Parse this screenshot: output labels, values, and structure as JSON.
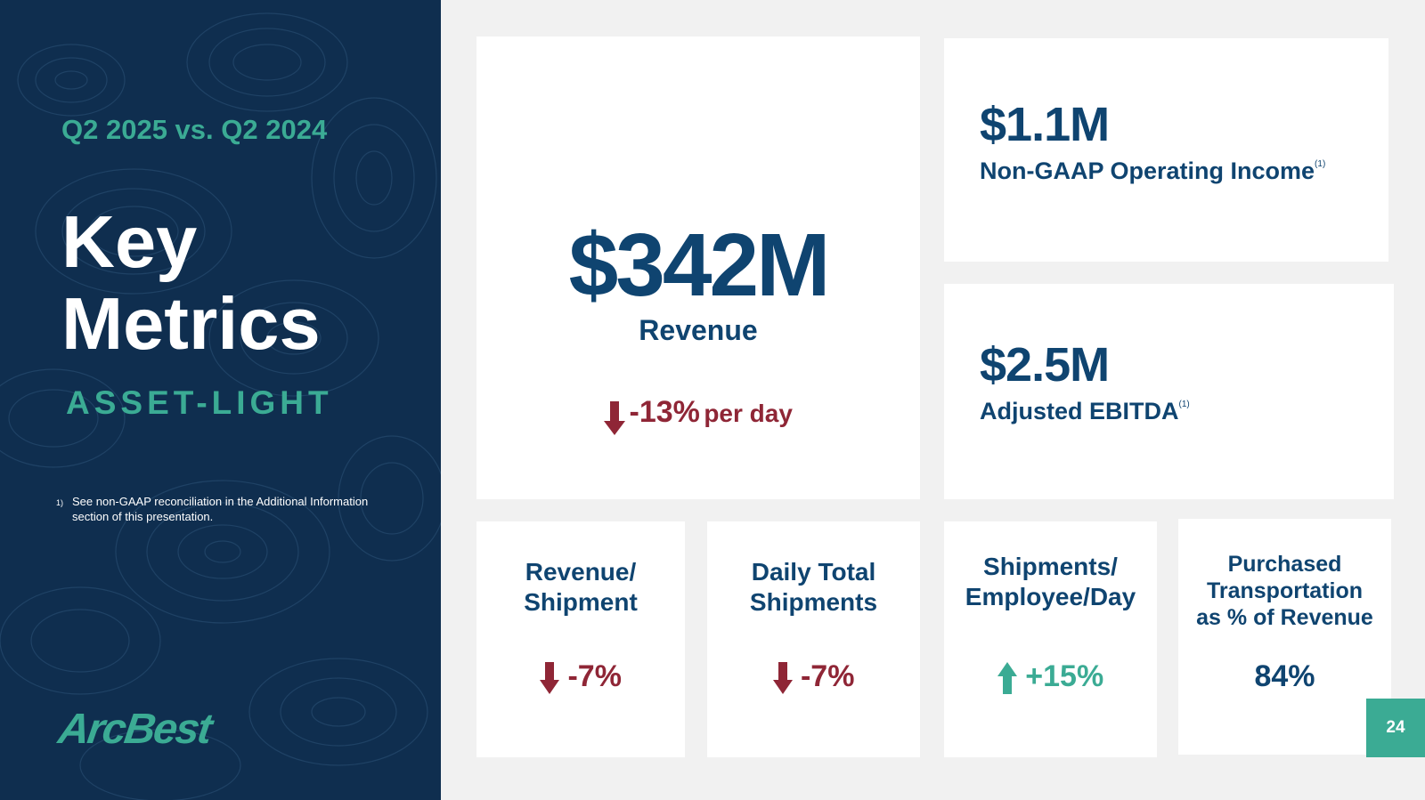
{
  "left_panel": {
    "period": "Q2 2025 vs. Q2 2024",
    "title_line1": "Key",
    "title_line2": "Metrics",
    "subtitle": "ASSET-LIGHT",
    "footnote_number": "1)",
    "footnote_text": "See non-GAAP reconciliation in the Additional Information section of this presentation.",
    "logo_text": "ArcBest"
  },
  "revenue": {
    "value": "$342M",
    "label": "Revenue",
    "change_pct": "-13%",
    "change_unit": "per day",
    "direction": "down"
  },
  "operating_income": {
    "value": "$1.1M",
    "label": "Non-GAAP Operating Income",
    "footnote_ref": "(1)"
  },
  "adjusted_ebitda": {
    "value": "$2.5M",
    "label": "Adjusted EBITDA",
    "footnote_ref": "(1)"
  },
  "small_metrics": [
    {
      "line1": "Revenue/",
      "line2": "Shipment",
      "value": "-7%",
      "direction": "down"
    },
    {
      "line1": "Daily Total",
      "line2": "Shipments",
      "value": "-7%",
      "direction": "down"
    },
    {
      "line1": "Shipments/",
      "line2": "Employee/Day",
      "value": "+15%",
      "direction": "up"
    },
    {
      "line1": "Purchased",
      "line2": "Transportation",
      "line3": "as % of Revenue",
      "value": "84%",
      "direction": "none"
    }
  ],
  "page_number": "24",
  "colors": {
    "navy": "#0f2e4f",
    "teal": "#3bab94",
    "dark_blue": "#0f4470",
    "red": "#8f2636"
  }
}
